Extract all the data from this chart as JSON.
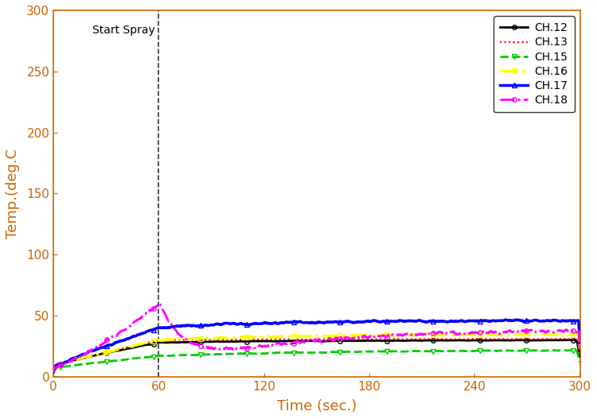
{
  "title": "",
  "xlabel": "Time (sec.)",
  "ylabel": "Temp.(deg.C",
  "xlim": [
    0,
    300
  ],
  "ylim": [
    0,
    300
  ],
  "xticks": [
    0,
    60,
    120,
    180,
    240,
    300
  ],
  "yticks": [
    0,
    50,
    100,
    150,
    200,
    250,
    300
  ],
  "spray_x": 60,
  "spray_label": "Start Spray",
  "channels": [
    "CH.12",
    "CH.13",
    "CH.15",
    "CH.16",
    "CH.17",
    "CH.18"
  ],
  "colors": [
    "#000000",
    "#ff0000",
    "#00cc00",
    "#ffff00",
    "#0000ff",
    "#ff00ff"
  ],
  "linestyles": [
    "-",
    ":",
    "--",
    "-.",
    "-",
    "-."
  ],
  "markers": [
    "o",
    null,
    "v",
    "s",
    "^",
    "o"
  ],
  "markevery": 25,
  "marker_sizes": [
    4,
    0,
    4,
    4,
    4,
    4
  ],
  "linewidths": [
    2.0,
    1.5,
    2.0,
    2.5,
    2.5,
    2.0
  ],
  "legend_loc": "upper right",
  "background_color": "#ffffff",
  "spray_line_color": "#333333",
  "spray_line_style": "--"
}
